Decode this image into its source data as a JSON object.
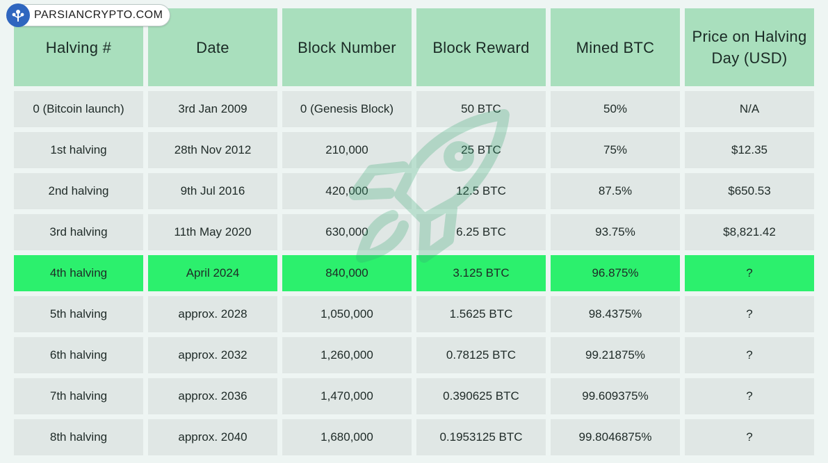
{
  "brand": {
    "name": "PARSIANCRYPTO.COM"
  },
  "table": {
    "headers": [
      "Halving #",
      "Date",
      "Block Number",
      "Block Reward",
      "Mined BTC",
      "Price on Halving Day (USD)"
    ],
    "highlight_color": "#2cf06d",
    "header_color": "#a9dfbd",
    "rows": [
      [
        "0 (Bitcoin launch)",
        "3rd Jan 2009",
        "0 (Genesis Block)",
        "50 BTC",
        "50%",
        "N/A"
      ],
      [
        "1st halving",
        "28th Nov 2012",
        "210,000",
        "25 BTC",
        "75%",
        "$12.35"
      ],
      [
        "2nd halving",
        "9th Jul 2016",
        "420,000",
        "12.5 BTC",
        "87.5%",
        "$650.53"
      ],
      [
        "3rd halving",
        "11th May 2020",
        "630,000",
        "6.25 BTC",
        "93.75%",
        "$8,821.42"
      ],
      [
        "4th halving",
        "April 2024",
        "840,000",
        "3.125 BTC",
        "96.875%",
        "?"
      ],
      [
        "5th halving",
        "approx. 2028",
        "1,050,000",
        "1.5625 BTC",
        "98.4375%",
        "?"
      ],
      [
        "6th halving",
        "approx. 2032",
        "1,260,000",
        "0.78125 BTC",
        "99.21875%",
        "?"
      ],
      [
        "7th halving",
        "approx. 2036",
        "1,470,000",
        "0.390625 BTC",
        "99.609375%",
        "?"
      ],
      [
        "8th halving",
        "approx. 2040",
        "1,680,000",
        "0.1953125 BTC",
        "99.8046875%",
        "?"
      ]
    ]
  }
}
